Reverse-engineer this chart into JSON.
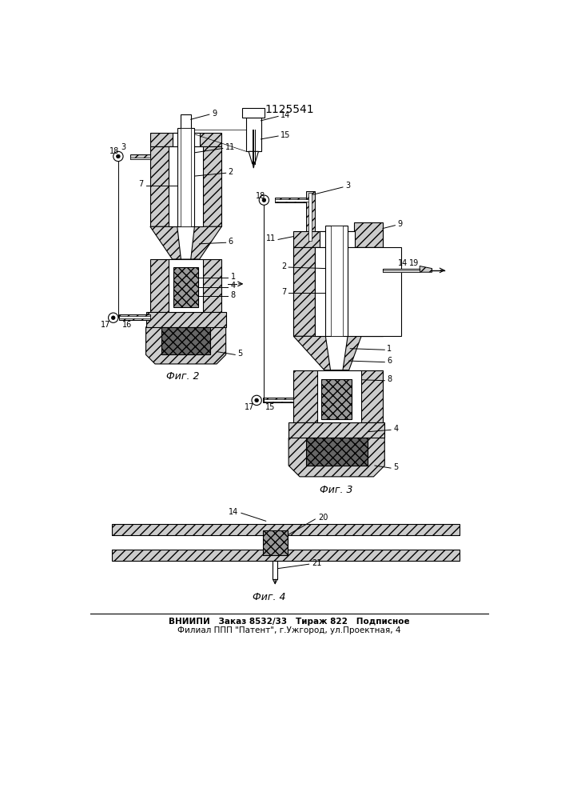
{
  "patent_number": "1125541",
  "bg": "#ffffff",
  "lc": "#000000",
  "fig_width": 7.07,
  "fig_height": 10.0,
  "footer1": "ВНИИПИ   Заказ 8532/33   Тираж 822   Подписное",
  "footer2": "Филиал ППП \"Патент\", г.Ужгород, ул.Проектная, 4",
  "cap1": "Фиг. 2",
  "cap2": "Фиг. 3",
  "cap3": "Фиг. 4",
  "gl": "#cccccc",
  "gm": "#999999",
  "gd": "#666666"
}
